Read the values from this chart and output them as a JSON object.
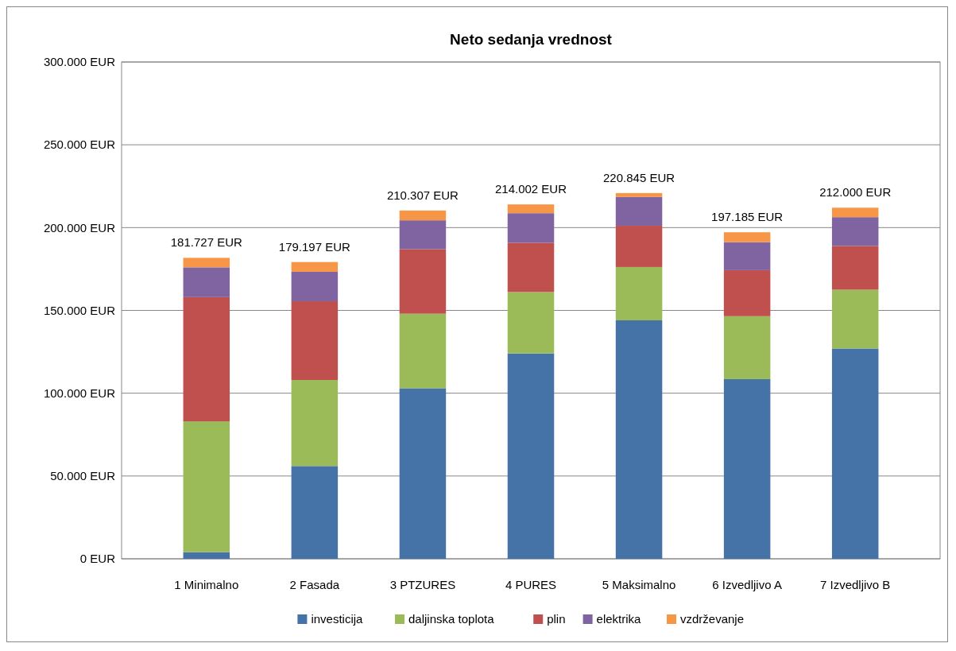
{
  "chart_data": {
    "type": "bar",
    "title": "Neto sedanja vrednost",
    "stacked": true,
    "categories": [
      "1 Minimalno",
      "2 Fasada",
      "3 PTZURES",
      "4 PURES",
      "5 Maksimalno",
      "6 Izvedljivo A",
      "7 Izvedljivo B"
    ],
    "series": [
      {
        "name": "investicija",
        "color": "#4572a7",
        "values": [
          4000,
          56000,
          103000,
          124000,
          144000,
          108500,
          127000
        ]
      },
      {
        "name": "daljinska toplota",
        "color": "#9bbb59",
        "values": [
          79000,
          52000,
          45000,
          37100,
          32200,
          38000,
          35500
        ]
      },
      {
        "name": "plin",
        "color": "#c0504d",
        "values": [
          75000,
          47500,
          39000,
          29700,
          24900,
          27800,
          26400
        ]
      },
      {
        "name": "elektrika",
        "color": "#8064a2",
        "values": [
          18000,
          17800,
          17400,
          17900,
          17400,
          16900,
          17400
        ]
      },
      {
        "name": "vzdrževanje",
        "color": "#f79646",
        "values": [
          5727,
          5897,
          5907,
          5302,
          2345,
          5985,
          5700
        ]
      }
    ],
    "totals": [
      "181.727 EUR",
      "179.197 EUR",
      "210.307 EUR",
      "214.002 EUR",
      "220.845 EUR",
      "197.185 EUR",
      "212.000 EUR"
    ],
    "ylim": [
      0,
      300000
    ],
    "yticks": [
      {
        "value": 0,
        "label": "0 EUR"
      },
      {
        "value": 50000,
        "label": "50.000 EUR"
      },
      {
        "value": 100000,
        "label": "100.000 EUR"
      },
      {
        "value": 150000,
        "label": "150.000 EUR"
      },
      {
        "value": 200000,
        "label": "200.000 EUR"
      },
      {
        "value": 250000,
        "label": "250.000 EUR"
      },
      {
        "value": 300000,
        "label": "300.000 EUR"
      }
    ],
    "grid": "y",
    "legend": "bottom"
  }
}
